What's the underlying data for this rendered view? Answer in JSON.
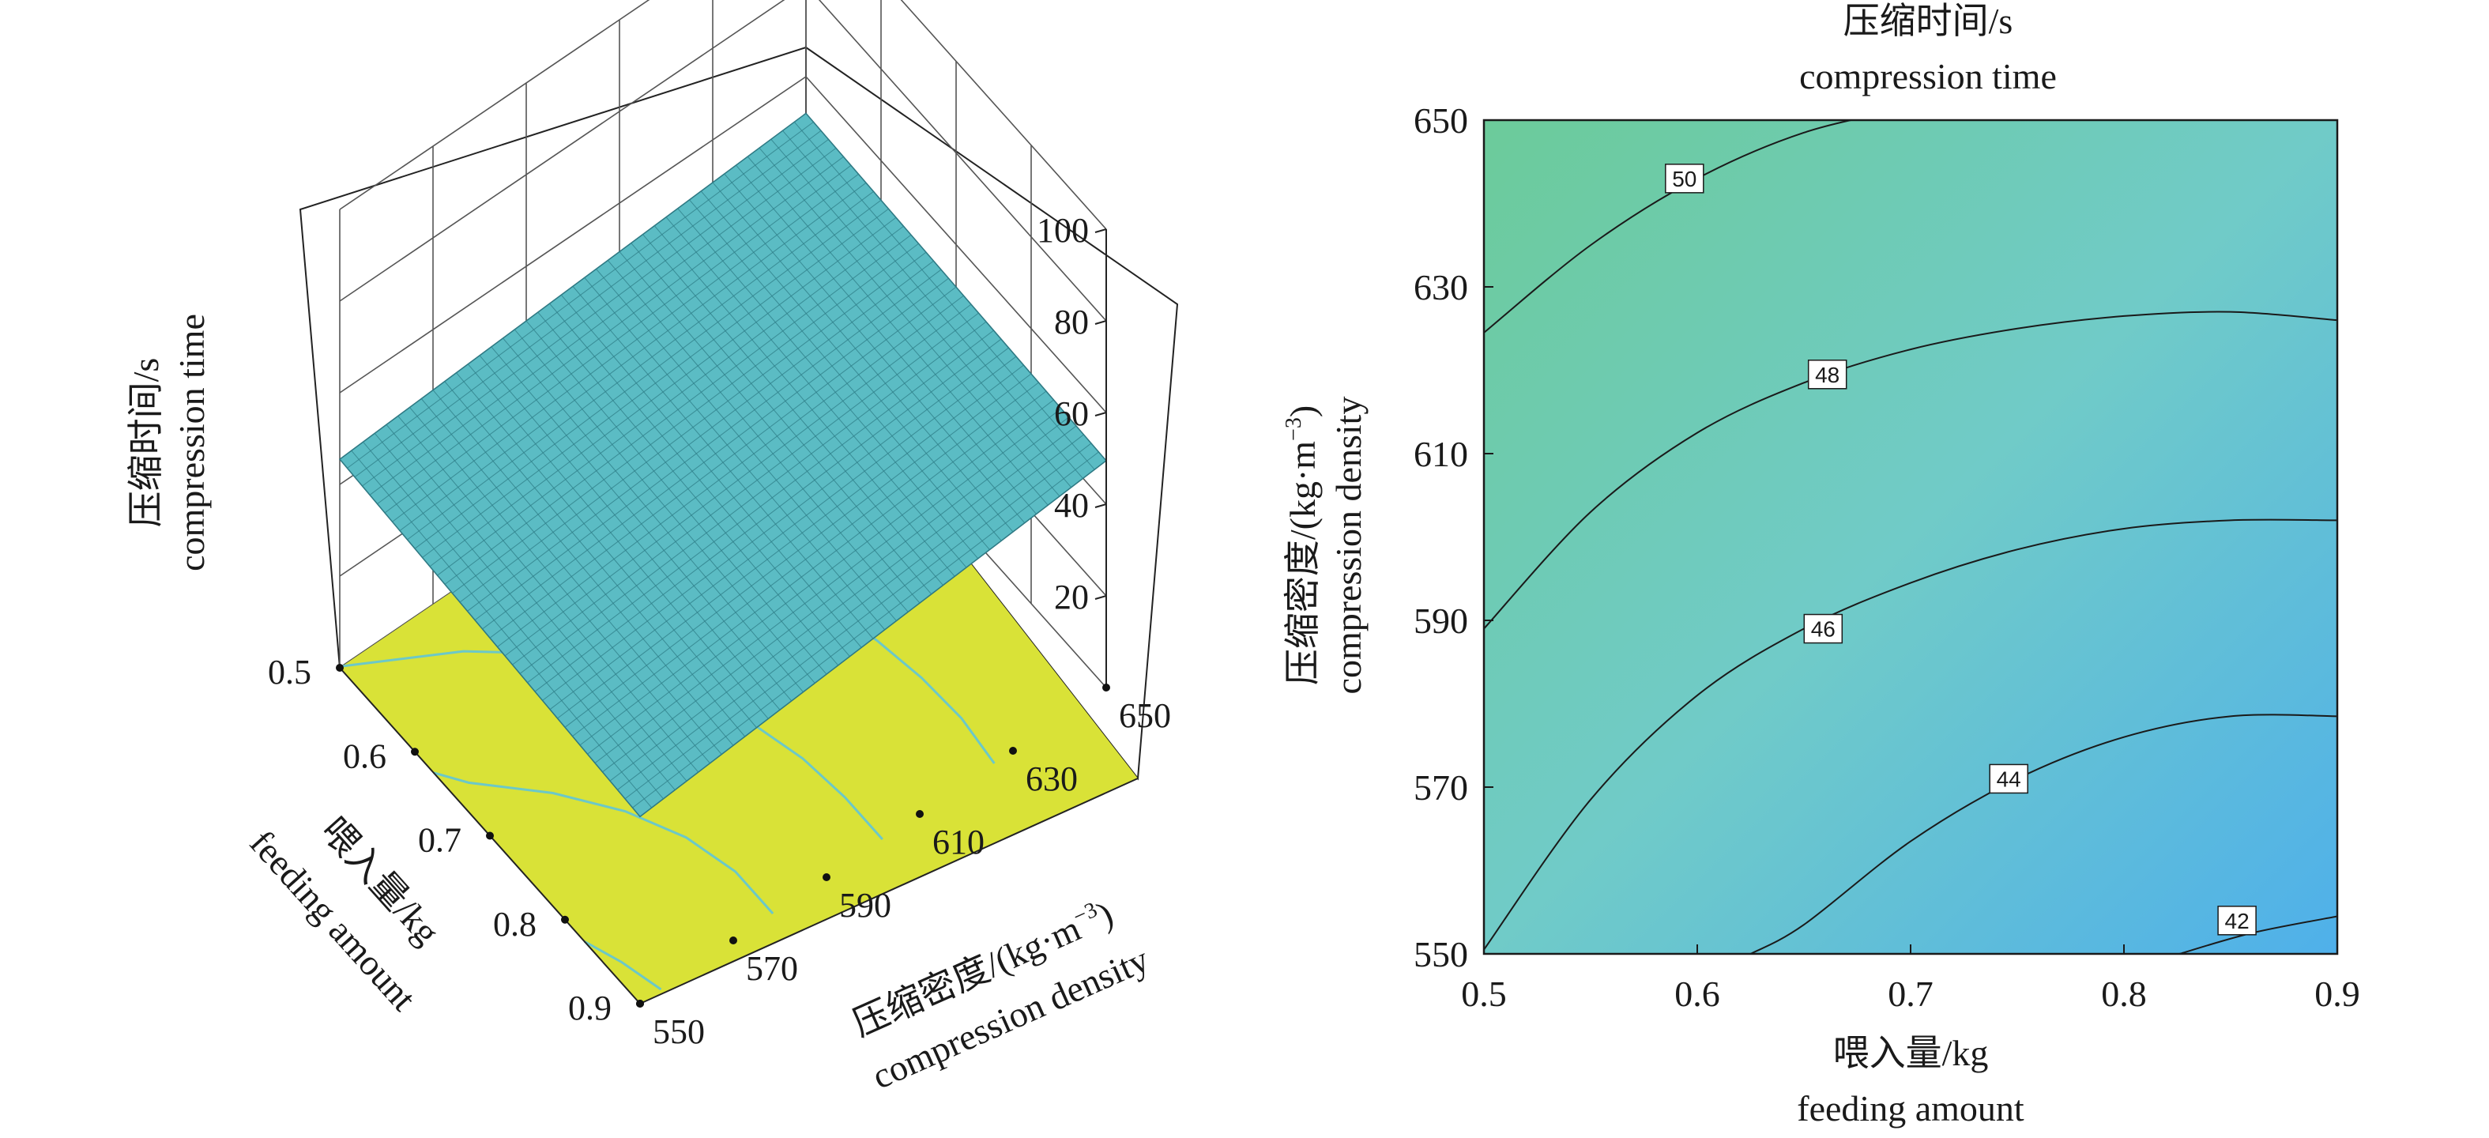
{
  "chart_data": [
    {
      "type": "surface3d",
      "zlabel": {
        "zh": "压缩时间/s",
        "en": "compression time"
      },
      "xlabel": {
        "zh": "喂入量/kg",
        "en": "feeding amount"
      },
      "ylabel": {
        "zh": "压缩密度/(kg·m",
        "sup": "−3",
        "close": ")",
        "en": "compression density"
      },
      "x_ticks": [
        "0.5",
        "0.6",
        "0.7",
        "0.8",
        "0.9"
      ],
      "y_ticks": [
        "550",
        "570",
        "590",
        "610",
        "630",
        "650"
      ],
      "z_ticks": [
        "20",
        "40",
        "60",
        "80",
        "100"
      ],
      "xlim": [
        0.5,
        0.9
      ],
      "ylim": [
        550,
        650
      ],
      "zlim": [
        0,
        100
      ],
      "corner_values": [
        {
          "x": 0.5,
          "y": 550,
          "z": 45.5
        },
        {
          "x": 0.9,
          "y": 550,
          "z": 40.8
        },
        {
          "x": 0.5,
          "y": 650,
          "z": 52.0
        },
        {
          "x": 0.9,
          "y": 650,
          "z": 49.5
        }
      ],
      "surface_color": "#5bbcc4",
      "floor_color": "#d9e237",
      "floor_contour_color": "#6cc8c8",
      "grid": true
    },
    {
      "type": "contour",
      "title": {
        "zh": "压缩时间/s",
        "en": "compression time"
      },
      "xlabel": {
        "zh": "喂入量/kg",
        "en": "feeding amount"
      },
      "ylabel": {
        "zh": "压缩密度/(kg·m",
        "sup": "−3",
        "close": ")",
        "en": "compression density"
      },
      "x_ticks": [
        "0.5",
        "0.6",
        "0.7",
        "0.8",
        "0.9"
      ],
      "y_ticks": [
        "550",
        "570",
        "590",
        "610",
        "630",
        "650"
      ],
      "xlim": [
        0.5,
        0.9
      ],
      "ylim": [
        550,
        650
      ],
      "contour_lines": [
        {
          "level": "50",
          "points": [
            [
              0.5,
              624.5
            ],
            [
              0.55,
              635.0
            ],
            [
              0.6,
              643.0
            ],
            [
              0.65,
              648.5
            ],
            [
              0.7,
              651.5
            ]
          ],
          "label_at": [
            0.594,
            643.0
          ]
        },
        {
          "level": "48",
          "points": [
            [
              0.5,
              589.0
            ],
            [
              0.55,
              603.0
            ],
            [
              0.6,
              612.5
            ],
            [
              0.65,
              618.5
            ],
            [
              0.7,
              622.5
            ],
            [
              0.75,
              625.0
            ],
            [
              0.8,
              626.5
            ],
            [
              0.85,
              627.0
            ],
            [
              0.9,
              626.0
            ]
          ],
          "label_at": [
            0.661,
            619.5
          ]
        },
        {
          "level": "46",
          "points": [
            [
              0.5,
              550.5
            ],
            [
              0.55,
              568.5
            ],
            [
              0.6,
              581.0
            ],
            [
              0.65,
              589.0
            ],
            [
              0.7,
              594.5
            ],
            [
              0.75,
              598.5
            ],
            [
              0.8,
              601.0
            ],
            [
              0.85,
              602.0
            ],
            [
              0.9,
              602.0
            ]
          ],
          "label_at": [
            0.659,
            589.0
          ]
        },
        {
          "level": "44",
          "points": [
            [
              0.625,
              550.0
            ],
            [
              0.65,
              553.5
            ],
            [
              0.7,
              563.5
            ],
            [
              0.75,
              571.0
            ],
            [
              0.8,
              576.0
            ],
            [
              0.85,
              578.5
            ],
            [
              0.9,
              578.5
            ]
          ],
          "label_at": [
            0.746,
            571.0
          ]
        },
        {
          "level": "42",
          "points": [
            [
              0.826,
              550.0
            ],
            [
              0.86,
              552.5
            ],
            [
              0.9,
              554.5
            ]
          ],
          "label_at": [
            0.853,
            554.0
          ]
        }
      ],
      "colormap": {
        "high": "#6ccb9a",
        "mid": "#70cbc8",
        "low": "#4fb0ea"
      }
    }
  ]
}
